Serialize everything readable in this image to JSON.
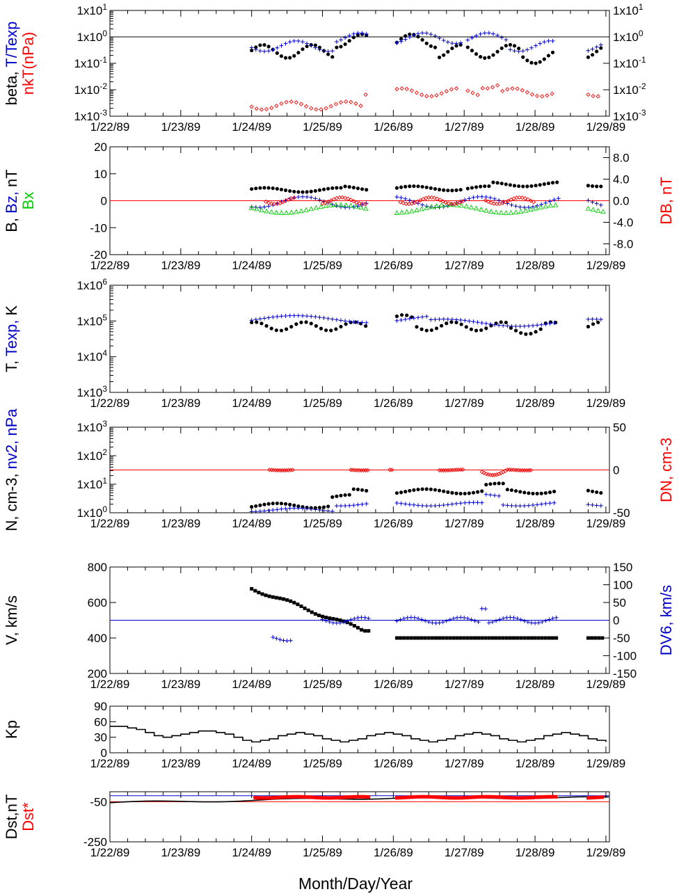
{
  "figure": {
    "x_axis_title": "Month/Day/Year",
    "date_labels": [
      "1/22/89",
      "1/23/89",
      "1/24/89",
      "1/25/89",
      "1/26/89",
      "1/27/89",
      "1/28/89",
      "1/29/89"
    ],
    "grid": false
  },
  "chart_data": [
    {
      "id": "beta",
      "type": "scatter",
      "ylabel_left": [
        [
          {
            "text": "beta, ",
            "color": "#000000"
          },
          {
            "text": "T/Texp",
            "color": "#0000cc"
          }
        ],
        [
          {
            "text": "nkT(nPa)",
            "color": "#ff0000"
          }
        ]
      ],
      "y_scale": "log",
      "ylim": [
        0.001,
        10
      ],
      "left_ticks": [
        "1x10-3",
        "1x10-2",
        "1x10-1",
        "1x100",
        "1x101"
      ],
      "right_ticks": [
        "1x10-3",
        "1x10-2",
        "1x10-1",
        "1x100",
        "1x101"
      ],
      "reference_line": {
        "y": 1,
        "color": "#000000"
      },
      "series": [
        {
          "role": "beta",
          "marker": "dot",
          "color": "#000000",
          "data_ref": "beta"
        },
        {
          "role": "T/Texp",
          "marker": "plus",
          "color": "#0000cc",
          "data_ref": "tratio"
        },
        {
          "role": "nkT",
          "marker": "diamond",
          "color": "#ff0000",
          "data_ref": "nkt"
        }
      ]
    },
    {
      "id": "bfield",
      "type": "scatter",
      "ylabel_left": [
        [
          {
            "text": "B, ",
            "color": "#000000"
          },
          {
            "text": "Bz, ",
            "color": "#0000cc"
          },
          {
            "text": "nT",
            "color": "#000000"
          }
        ],
        [
          {
            "text": "Bx",
            "color": "#00cc00"
          }
        ]
      ],
      "ylabel_right": [
        [
          {
            "text": "DB, nT",
            "color": "#ff0000"
          }
        ]
      ],
      "ylim": [
        -20,
        20
      ],
      "left_ticks": [
        "-20",
        "-10",
        "0",
        "10",
        "20"
      ],
      "right_ylim": [
        -10,
        10
      ],
      "right_ticks": [
        "-8.0",
        "-4.0",
        "0.0",
        "4.0",
        "8.0"
      ],
      "reference_line": {
        "y": 0,
        "color": "#ff0000"
      },
      "series": [
        {
          "role": "B",
          "marker": "dot",
          "color": "#000000",
          "data_ref": "b"
        },
        {
          "role": "Bz",
          "marker": "plus",
          "color": "#0000cc",
          "data_ref": "bz"
        },
        {
          "role": "Bx",
          "marker": "triangle",
          "color": "#00cc00",
          "data_ref": "bx"
        },
        {
          "role": "DB",
          "marker": "diamond",
          "color": "#ff0000",
          "data_ref": "db"
        }
      ]
    },
    {
      "id": "temp",
      "type": "scatter",
      "ylabel_left": [
        [
          {
            "text": "T, ",
            "color": "#000000"
          },
          {
            "text": "Texp, ",
            "color": "#0000cc"
          },
          {
            "text": "K",
            "color": "#000000"
          }
        ]
      ],
      "y_scale": "log",
      "ylim": [
        1000,
        1000000
      ],
      "left_ticks": [
        "1x103",
        "1x104",
        "1x105",
        "1x106"
      ],
      "series": [
        {
          "role": "T",
          "marker": "dot",
          "color": "#000000",
          "data_ref": "t"
        },
        {
          "role": "Texp",
          "marker": "plus",
          "color": "#0000cc",
          "data_ref": "texp"
        }
      ]
    },
    {
      "id": "density",
      "type": "scatter",
      "ylabel_left": [
        [
          {
            "text": "N, cm-3, ",
            "color": "#000000"
          },
          {
            "text": "nv2, nPa",
            "color": "#0000cc"
          }
        ]
      ],
      "ylabel_right": [
        [
          {
            "text": "DN, cm-3",
            "color": "#ff0000"
          }
        ]
      ],
      "y_scale": "log",
      "ylim": [
        1,
        1000
      ],
      "left_ticks": [
        "1x100",
        "1x101",
        "1x102",
        "1x103"
      ],
      "right_ylim": [
        -50,
        50
      ],
      "right_ticks": [
        "-50",
        "0",
        "50"
      ],
      "reference_line": {
        "y_right": 0,
        "color": "#ff0000"
      },
      "series": [
        {
          "role": "N",
          "marker": "dot",
          "color": "#000000",
          "data_ref": "n"
        },
        {
          "role": "nv2",
          "marker": "plus",
          "color": "#0000cc",
          "data_ref": "nv2"
        },
        {
          "role": "DN",
          "marker": "diamond",
          "color": "#ff0000",
          "data_ref": "dn"
        }
      ]
    },
    {
      "id": "speed",
      "type": "scatter",
      "ylabel_left": [
        [
          {
            "text": "V, km/s",
            "color": "#000000"
          }
        ]
      ],
      "ylabel_right": [
        [
          {
            "text": "DV6, km/s",
            "color": "#0000cc"
          }
        ]
      ],
      "ylim": [
        200,
        800
      ],
      "left_ticks": [
        "200",
        "400",
        "600",
        "800"
      ],
      "right_ylim": [
        -150,
        150
      ],
      "right_ticks": [
        "-150",
        "-100",
        "-50",
        "0",
        "50",
        "100",
        "150"
      ],
      "reference_line": {
        "y_right": 0,
        "color": "#0000cc"
      },
      "series": [
        {
          "role": "V",
          "marker": "square",
          "color": "#000000",
          "data_ref": "v"
        },
        {
          "role": "DV6",
          "marker": "plus",
          "color": "#0000cc",
          "data_ref": "dv6"
        }
      ]
    },
    {
      "id": "kp",
      "type": "line",
      "ylabel_left": [
        [
          {
            "text": "Kp",
            "color": "#000000"
          }
        ]
      ],
      "ylim": [
        0,
        90
      ],
      "left_ticks": [
        "0",
        "30",
        "60",
        "90"
      ],
      "series": [
        {
          "role": "Kp",
          "marker": "step",
          "color": "#000000",
          "data_ref": "kp"
        }
      ]
    },
    {
      "id": "dst",
      "type": "line",
      "ylabel_left": [
        [
          {
            "text": "Dst,nT",
            "color": "#000000"
          }
        ],
        [
          {
            "text": "Dst*",
            "color": "#ff0000"
          }
        ]
      ],
      "ylim": [
        -250,
        0
      ],
      "left_ticks": [
        "-250",
        "-50"
      ],
      "reference_lines": [
        {
          "y": -20,
          "color": "#0000cc"
        },
        {
          "y": -50,
          "color": "#ff0000"
        }
      ],
      "series": [
        {
          "role": "Dst",
          "marker": "line",
          "color": "#000000",
          "data_ref": "dst"
        },
        {
          "role": "Dst*",
          "marker": "square",
          "color": "#ff0000",
          "data_ref": "dststar"
        }
      ]
    }
  ]
}
